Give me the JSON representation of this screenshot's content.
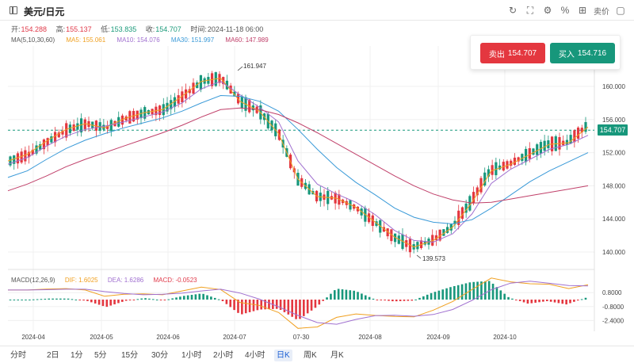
{
  "window": {
    "title": "美元/日元"
  },
  "toolbar": {
    "quote_label": "卖价"
  },
  "ohlc": {
    "open_label": "开:",
    "open": "154.288",
    "high_label": "高:",
    "high": "155.137",
    "low_label": "低:",
    "low": "153.835",
    "close_label": "收:",
    "close": "154.707",
    "time_label": "时间:",
    "time": "2024-11-18 06:00"
  },
  "ma": {
    "params": "MA(5,10,30,60)",
    "ma5": "MA5: 155.061",
    "ma10": "MA10: 154.076",
    "ma30": "MA30: 151.997",
    "ma60": "MA60: 147.989",
    "colors": {
      "ma5": "#f0a020",
      "ma10": "#a070d0",
      "ma30": "#3a9ad8",
      "ma60": "#c0406a"
    }
  },
  "trade": {
    "sell_label": "卖出",
    "sell_price": "154.707",
    "buy_label": "买入",
    "buy_price": "154.716",
    "sell_color": "#e4373f",
    "buy_color": "#17977b"
  },
  "price_axis": {
    "ticks": [
      "160.000",
      "156.000",
      "152.000",
      "148.000",
      "144.000",
      "140.000"
    ],
    "current": "154.707"
  },
  "annotations": {
    "high": "161.947",
    "low": "139.573"
  },
  "macd": {
    "params": "MACD(12,26,9)",
    "dif": "DIF: 1.6025",
    "dea": "DEA: 1.6286",
    "macd": "MACD: -0.0523",
    "ticks": [
      "0.8000",
      "-0.8000",
      "-2.4000"
    ]
  },
  "time_axis": [
    "2024-04",
    "2024-05",
    "2024-06",
    "2024-07",
    "07-30",
    "2024-08",
    "2024-09",
    "2024-10"
  ],
  "timeframes": [
    {
      "label": "分时",
      "active": false
    },
    {
      "label": "2日",
      "active": false
    },
    {
      "label": "1分",
      "active": false
    },
    {
      "label": "5分",
      "active": false
    },
    {
      "label": "15分",
      "active": false
    },
    {
      "label": "30分",
      "active": false
    },
    {
      "label": "1小时",
      "active": false
    },
    {
      "label": "2小时",
      "active": false
    },
    {
      "label": "4小时",
      "active": false
    },
    {
      "label": "日K",
      "active": true
    },
    {
      "label": "周K",
      "active": false
    },
    {
      "label": "月K",
      "active": false
    }
  ],
  "chart_data": {
    "type": "line",
    "title": "",
    "xlabel": "",
    "ylabel": "",
    "ylim": [
      137,
      163
    ],
    "series": [
      {
        "name": "MA5",
        "values": [
          151.0,
          151.8,
          153.4,
          154.8,
          155.5,
          155.0,
          156.1,
          156.8,
          157.2,
          158.8,
          160.6,
          161.0,
          158.2,
          157.0,
          154.3,
          148.8,
          146.7,
          146.5,
          145.4,
          143.6,
          141.8,
          140.6,
          141.4,
          143.0,
          146.0,
          149.8,
          150.6,
          151.8,
          153.0,
          153.2,
          155.1
        ]
      },
      {
        "name": "MA10",
        "values": [
          150.6,
          151.4,
          152.8,
          154.0,
          154.8,
          155.2,
          155.7,
          156.3,
          156.9,
          158.0,
          159.7,
          160.6,
          159.0,
          157.5,
          155.7,
          151.0,
          148.2,
          147.0,
          146.0,
          144.5,
          142.6,
          141.4,
          141.2,
          142.2,
          144.6,
          148.3,
          150.0,
          151.2,
          152.4,
          153.0,
          154.1
        ]
      },
      {
        "name": "MA30",
        "values": [
          149.0,
          149.8,
          151.2,
          152.5,
          153.5,
          154.3,
          155.0,
          155.6,
          156.2,
          157.0,
          158.0,
          158.9,
          158.8,
          158.2,
          157.0,
          154.8,
          152.4,
          150.2,
          148.4,
          146.9,
          145.3,
          144.2,
          143.6,
          143.4,
          143.9,
          145.3,
          146.9,
          148.5,
          149.8,
          150.9,
          152.0
        ]
      },
      {
        "name": "MA60",
        "values": [
          147.4,
          148.2,
          149.2,
          150.3,
          151.2,
          152.0,
          152.8,
          153.6,
          154.4,
          155.3,
          156.3,
          157.2,
          157.4,
          157.2,
          156.6,
          155.6,
          154.4,
          153.1,
          151.8,
          150.5,
          149.2,
          148.0,
          147.0,
          146.3,
          145.9,
          146.0,
          146.4,
          146.8,
          147.2,
          147.6,
          148.0
        ]
      }
    ]
  }
}
